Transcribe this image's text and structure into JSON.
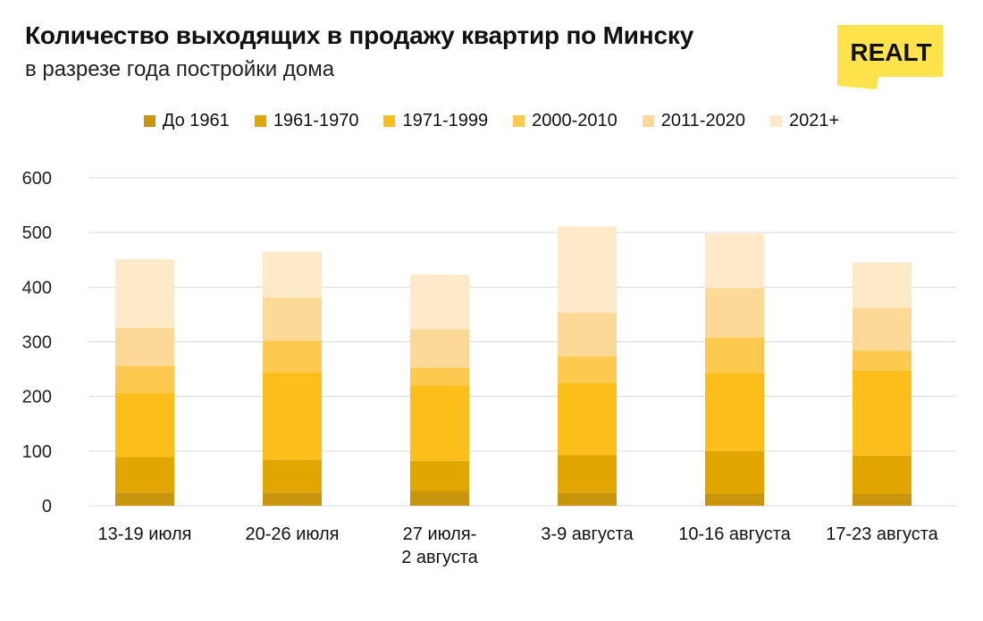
{
  "header": {
    "title": "Количество выходящих в продажу квартир по Минску",
    "subtitle": "в разрезе года постройки дома",
    "logo_text": "REALT"
  },
  "colors": {
    "До 1961": "#C9950C",
    "1961-1970": "#E2A600",
    "1971-1999": "#FCBE1B",
    "2000-2010": "#FDCA4F",
    "2011-2020": "#FDD998",
    "2021+": "#FEEAC9",
    "logo": "#FFE34D",
    "grid": "#D9D9D9"
  },
  "chart_data": {
    "type": "bar",
    "stacked": true,
    "categories": [
      [
        "13-19 июля"
      ],
      [
        "20-26 июля"
      ],
      [
        "27 июля-",
        "2 августа"
      ],
      [
        "3-9 августа"
      ],
      [
        "10-16 августа"
      ],
      [
        "17-23 августа"
      ]
    ],
    "series": [
      {
        "name": "До 1961",
        "values": [
          24,
          24,
          27,
          24,
          22,
          22
        ]
      },
      {
        "name": "1961-1970",
        "values": [
          65,
          60,
          55,
          69,
          78,
          70
        ]
      },
      {
        "name": "1971-1999",
        "values": [
          117,
          160,
          138,
          132,
          143,
          155
        ]
      },
      {
        "name": "2000-2010",
        "values": [
          50,
          58,
          33,
          48,
          65,
          37
        ]
      },
      {
        "name": "2011-2020",
        "values": [
          70,
          79,
          70,
          80,
          90,
          78
        ]
      },
      {
        "name": "2021+",
        "values": [
          125,
          84,
          100,
          158,
          100,
          83
        ]
      }
    ],
    "yticks": [
      0,
      100,
      200,
      300,
      400,
      500,
      600
    ],
    "ylim": [
      0,
      600
    ],
    "grid": true,
    "legend": "top",
    "title": "Количество выходящих в продажу квартир по Минску",
    "subtitle": "в разрезе года постройки дома",
    "xlabel": "",
    "ylabel": ""
  }
}
